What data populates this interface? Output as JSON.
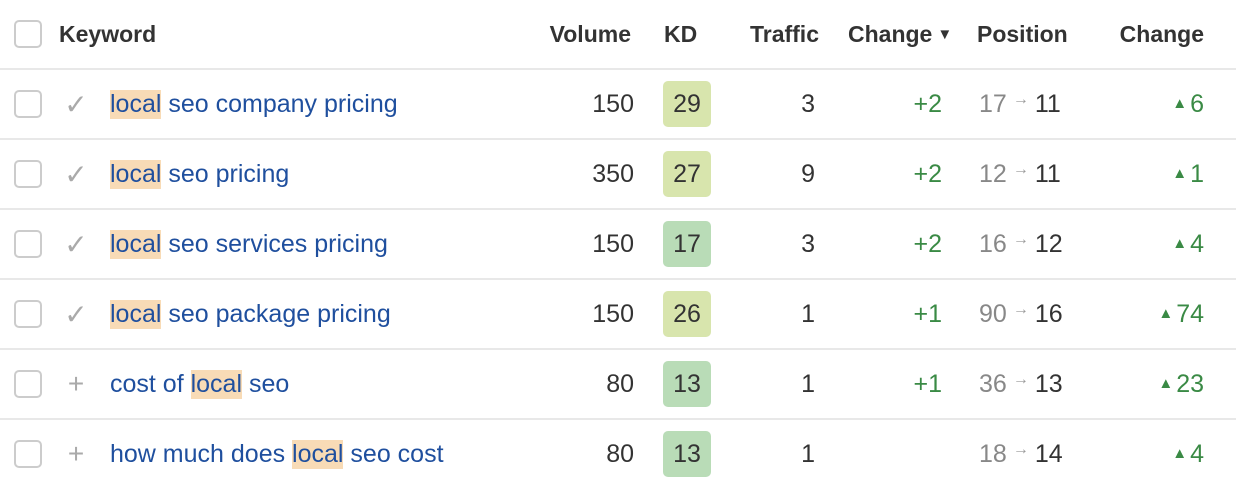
{
  "header": {
    "keyword": "Keyword",
    "volume": "Volume",
    "kd": "KD",
    "traffic": "Traffic",
    "change": "Change",
    "sort_icon": "triangle-down-icon",
    "position": "Position",
    "position_change": "Change"
  },
  "colors": {
    "link": "#1f4f9e",
    "highlight": "#f8dbb6",
    "positive": "#3a8a45",
    "kd_low": "#b9dcb7",
    "kd_mid": "#d8e5ad"
  },
  "rows": [
    {
      "status": "check",
      "kw_pre": "",
      "kw_hl": "local",
      "kw_post": " seo company pricing",
      "volume": "150",
      "kd": "29",
      "kd_color": "#d8e5ad",
      "traffic": "3",
      "change": "+2",
      "pos_from": "17",
      "pos_to": "11",
      "pos_change": "6"
    },
    {
      "status": "check",
      "kw_pre": "",
      "kw_hl": "local",
      "kw_post": " seo pricing",
      "volume": "350",
      "kd": "27",
      "kd_color": "#d8e5ad",
      "traffic": "9",
      "change": "+2",
      "pos_from": "12",
      "pos_to": "11",
      "pos_change": "1"
    },
    {
      "status": "check",
      "kw_pre": "",
      "kw_hl": "local",
      "kw_post": " seo services pricing",
      "volume": "150",
      "kd": "17",
      "kd_color": "#b9dcb7",
      "traffic": "3",
      "change": "+2",
      "pos_from": "16",
      "pos_to": "12",
      "pos_change": "4"
    },
    {
      "status": "check",
      "kw_pre": "",
      "kw_hl": "local",
      "kw_post": " seo package pricing",
      "volume": "150",
      "kd": "26",
      "kd_color": "#d8e5ad",
      "traffic": "1",
      "change": "+1",
      "pos_from": "90",
      "pos_to": "16",
      "pos_change": "74"
    },
    {
      "status": "plus",
      "kw_pre": "cost of ",
      "kw_hl": "local",
      "kw_post": " seo",
      "volume": "80",
      "kd": "13",
      "kd_color": "#b9dcb7",
      "traffic": "1",
      "change": "+1",
      "pos_from": "36",
      "pos_to": "13",
      "pos_change": "23"
    },
    {
      "status": "plus",
      "kw_pre": "how much does ",
      "kw_hl": "local",
      "kw_post": " seo cost",
      "volume": "80",
      "kd": "13",
      "kd_color": "#b9dcb7",
      "traffic": "1",
      "change": "",
      "pos_from": "18",
      "pos_to": "14",
      "pos_change": "4"
    }
  ]
}
